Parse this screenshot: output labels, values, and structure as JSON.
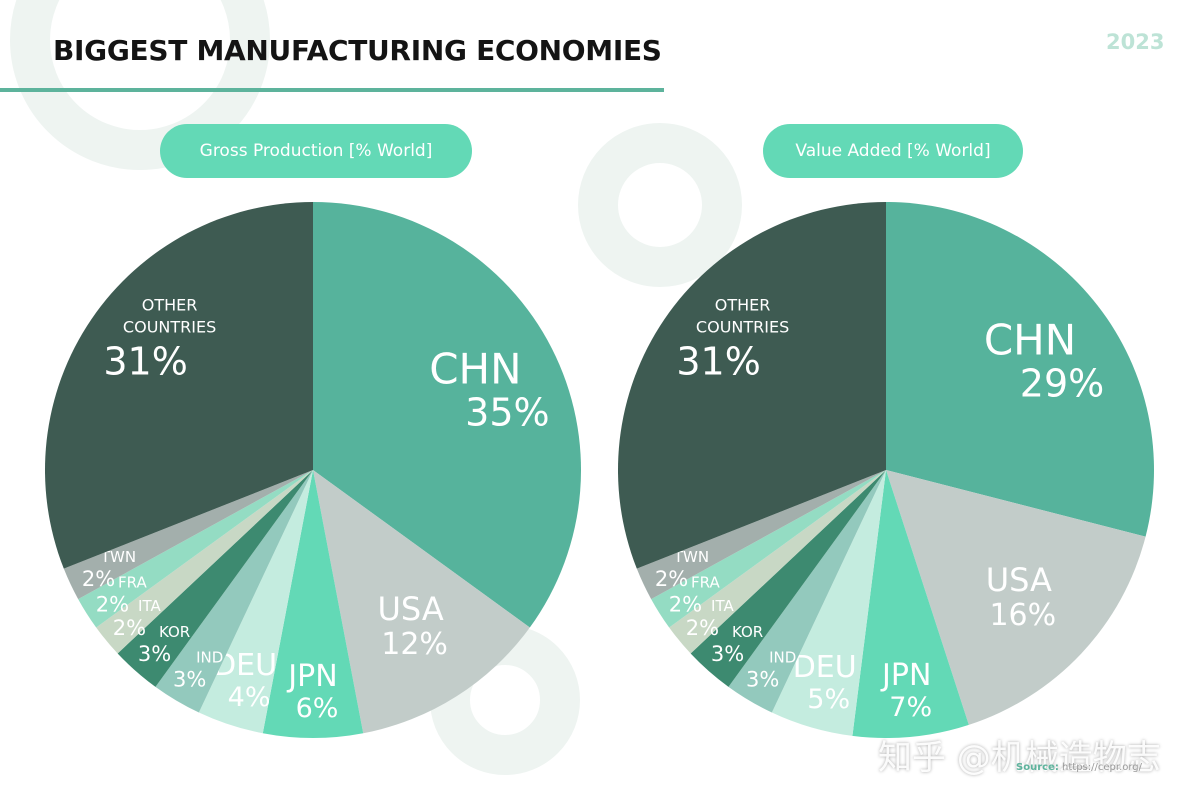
{
  "header": {
    "title": "BIGGEST MANUFACTURING ECONOMIES",
    "year": "2023"
  },
  "colors": {
    "accent": "#5db39c",
    "pill": "#63d9b6"
  },
  "footer": {
    "source_label": "Source:",
    "source_url": "https://cepr.org/"
  },
  "watermark": "知乎 @机械造物志",
  "chart_data": [
    {
      "type": "pie",
      "title": "Gross Production [% World]",
      "slices": [
        {
          "name": "CHN",
          "value": 35,
          "label": "35%",
          "color": "#56b39c"
        },
        {
          "name": "USA",
          "value": 12,
          "label": "12%",
          "color": "#c2ccc9"
        },
        {
          "name": "JPN",
          "value": 6,
          "label": "6%",
          "color": "#63d9b6"
        },
        {
          "name": "DEU",
          "value": 4,
          "label": "4%",
          "color": "#c4ecdf"
        },
        {
          "name": "IND",
          "value": 3,
          "label": "3%",
          "color": "#93c9bd"
        },
        {
          "name": "KOR",
          "value": 3,
          "label": "3%",
          "color": "#3d8a70"
        },
        {
          "name": "ITA",
          "value": 2,
          "label": "2%",
          "color": "#c8d8c5"
        },
        {
          "name": "FRA",
          "value": 2,
          "label": "2%",
          "color": "#94dcc3"
        },
        {
          "name": "TWN",
          "value": 2,
          "label": "2%",
          "color": "#a3afac"
        },
        {
          "name": "OTHER COUNTRIES",
          "value": 31,
          "label": "31%",
          "color": "#3e5b52"
        }
      ]
    },
    {
      "type": "pie",
      "title": "Value Added [% World]",
      "slices": [
        {
          "name": "CHN",
          "value": 29,
          "label": "29%",
          "color": "#56b39c"
        },
        {
          "name": "USA",
          "value": 16,
          "label": "16%",
          "color": "#c2ccc9"
        },
        {
          "name": "JPN",
          "value": 7,
          "label": "7%",
          "color": "#63d9b6"
        },
        {
          "name": "DEU",
          "value": 5,
          "label": "5%",
          "color": "#c4ecdf"
        },
        {
          "name": "IND",
          "value": 3,
          "label": "3%",
          "color": "#93c9bd"
        },
        {
          "name": "KOR",
          "value": 3,
          "label": "3%",
          "color": "#3d8a70"
        },
        {
          "name": "ITA",
          "value": 2,
          "label": "2%",
          "color": "#c8d8c5"
        },
        {
          "name": "FRA",
          "value": 2,
          "label": "2%",
          "color": "#94dcc3"
        },
        {
          "name": "TWN",
          "value": 2,
          "label": "2%",
          "color": "#a3afac"
        },
        {
          "name": "OTHER COUNTRIES",
          "value": 31,
          "label": "31%",
          "color": "#3e5b52"
        }
      ]
    }
  ]
}
